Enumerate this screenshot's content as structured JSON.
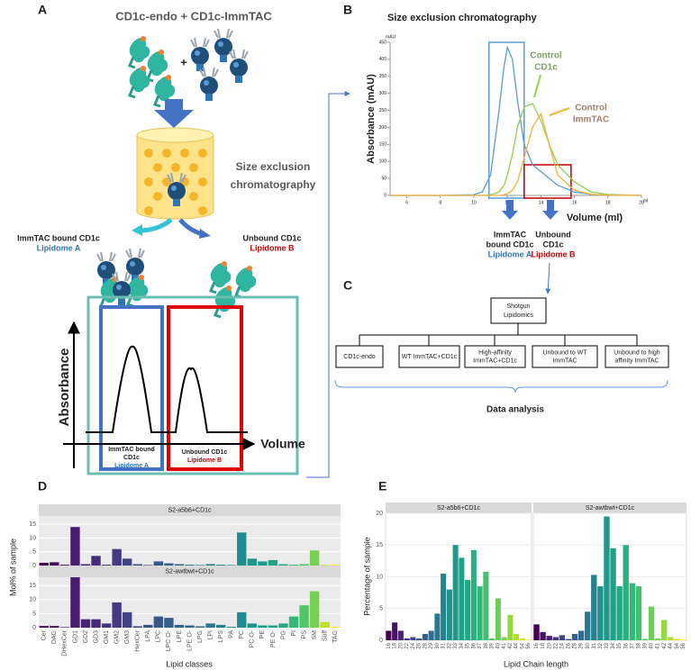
{
  "figure": {
    "A": {
      "label": "A",
      "title": "CD1c-endo + CD1c-ImmTAC",
      "plus": "+",
      "sec": [
        "Size exclusion",
        "chromatography"
      ],
      "bound": "ImmTAC bound CD1c",
      "lipidome_a": "Lipidome A",
      "unbound": "Unbound CD1c",
      "lipidome_b": "Lipidome B",
      "y_axis": "Absorbance",
      "x_axis": "Volume",
      "box_a": [
        "ImmTAC bound",
        "CD1c"
      ],
      "box_a_lipidome": "Lipidome A",
      "box_b": "Unbound CD1c",
      "box_b_lipidome": "Lipidome B"
    },
    "B": {
      "label": "B",
      "bound": [
        "ImmTAC",
        "bound CD1c"
      ],
      "lipidome_a": "Lipidome A",
      "unbound": [
        "Unbound",
        "CD1c"
      ],
      "lipidome_b": "Lipidome B"
    },
    "C": {
      "label": "C",
      "root": [
        "Shotgun",
        "Lipidomics"
      ],
      "leaves": [
        [
          "CD1c-endo"
        ],
        [
          "WT ImmTAC+CD1c"
        ],
        [
          "High-affinity",
          "ImmTAC+CD1c"
        ],
        [
          "Unbound to WT",
          "ImmTAC"
        ],
        [
          "Unbound to high",
          "affinity ImmTAC"
        ]
      ],
      "footer": "Data analysis"
    },
    "D": {
      "label": "D"
    },
    "E": {
      "label": "E"
    }
  },
  "chart_data": [
    {
      "type": "line",
      "title": "Size exclusion chromatography",
      "xlabel": "Volume (ml)",
      "ylabel": "Absorbance (mAU)",
      "x_unit": "ml",
      "y_unit": "mAU",
      "x": [
        5,
        8,
        10,
        10.5,
        11,
        11.5,
        11.8,
        12,
        12.3,
        12.6,
        13,
        13.5,
        14,
        14.5,
        15,
        16,
        17,
        18,
        20
      ],
      "series": [
        {
          "color": "#5b9bd5",
          "values": [
            0,
            0,
            2,
            10,
            60,
            250,
            380,
            435,
            400,
            280,
            150,
            90,
            70,
            50,
            30,
            10,
            3,
            1,
            0
          ]
        },
        {
          "color": "#92d050",
          "values": [
            0,
            0,
            0,
            0,
            2,
            10,
            30,
            60,
            120,
            200,
            260,
            270,
            220,
            150,
            90,
            40,
            10,
            3,
            0
          ]
        },
        {
          "color": "#f5b041",
          "values": [
            0,
            0,
            0,
            0,
            0,
            0,
            2,
            5,
            15,
            40,
            110,
            200,
            240,
            150,
            60,
            15,
            3,
            1,
            0
          ]
        }
      ],
      "annotations": [
        [
          "Control",
          "CD1c"
        ],
        [
          "Control",
          "ImmTAC"
        ]
      ],
      "regions": [
        {
          "xlim": [
            10.9,
            13
          ],
          "ylim": [
            0,
            450
          ],
          "color": "#5b9bd5"
        },
        {
          "xlim": [
            13,
            15.8
          ],
          "ylim": [
            0,
            90
          ],
          "color": "#c00000"
        }
      ],
      "xlim": [
        5,
        20
      ],
      "xticks": [
        6,
        8,
        10,
        12,
        14,
        16,
        18,
        20
      ],
      "ylim": [
        0,
        450
      ],
      "yticks": [
        0,
        50,
        100,
        150,
        200,
        250,
        300,
        350,
        400,
        450
      ]
    },
    {
      "type": "bar",
      "facets": "rows",
      "xlabel": "Lipid classes",
      "ylabel": "Mol% of sample",
      "grid": true,
      "categories": [
        "Cer",
        "DAG",
        "DHexCer",
        "GD1",
        "GD2",
        "GD3",
        "GM1",
        "GM2",
        "GM3",
        "HexCer",
        "LPA",
        "LPC",
        "LPC O-",
        "LPE",
        "LPE O-",
        "LPG",
        "LPI",
        "LPS",
        "PA",
        "PC",
        "PC O-",
        "PE",
        "PE O-",
        "PG",
        "PI",
        "PS",
        "SM",
        "Sulf",
        "TAG"
      ],
      "colors": [
        "#440154",
        "#460b5e",
        "#471466",
        "#481c6e",
        "#482475",
        "#472c7a",
        "#46337f",
        "#443a83",
        "#414287",
        "#3e4989",
        "#3b518b",
        "#38588c",
        "#355f8d",
        "#32658e",
        "#2f6b8e",
        "#2c728e",
        "#29788e",
        "#277f8e",
        "#24868e",
        "#218d8c",
        "#1f948c",
        "#1f9a8a",
        "#22a187",
        "#2aa883",
        "#35b779",
        "#52c569",
        "#75d054",
        "#c2df23",
        "#fde725"
      ],
      "series": [
        {
          "name": "S2-a5b6+CD1c",
          "values": [
            1,
            1.2,
            0.3,
            14,
            0.5,
            3.5,
            0.3,
            6,
            2.5,
            0.5,
            0.2,
            1.5,
            0.8,
            0.5,
            0.3,
            0.2,
            0.5,
            0.3,
            0.2,
            12,
            2.5,
            1.5,
            2,
            0.5,
            0.3,
            0.5,
            5.5,
            0.2,
            0.3
          ]
        },
        {
          "name": "S2-awtbwt+CD1c",
          "values": [
            0.6,
            0.6,
            0.2,
            18,
            3,
            3,
            1.5,
            9,
            5.5,
            0.5,
            1,
            4,
            3.5,
            1,
            0.8,
            0.5,
            1.5,
            1,
            0.3,
            5.5,
            1.5,
            0.8,
            0.8,
            1.5,
            4,
            8,
            13,
            2,
            0.3
          ]
        }
      ],
      "ylim": [
        0,
        18
      ],
      "yticks": [
        0,
        5,
        10,
        15
      ]
    },
    {
      "type": "bar",
      "facets": "columns",
      "xlabel": "Lipid Chain length",
      "ylabel": "Percentage of sample",
      "grid": true,
      "categories": [
        "16",
        "18",
        "20",
        "22",
        "24",
        "26",
        "28",
        "29",
        "30",
        "31",
        "32",
        "33",
        "34",
        "35",
        "36",
        "37",
        "38",
        "39",
        "40",
        "41",
        "42",
        "44",
        "54",
        "56"
      ],
      "colors": [
        "#440154",
        "#471365",
        "#482475",
        "#463480",
        "#414487",
        "#3b528b",
        "#355f8d",
        "#2f6c8e",
        "#2a788e",
        "#26828e",
        "#21918c",
        "#1f9a8a",
        "#1fa188",
        "#22a884",
        "#2ab07f",
        "#35b779",
        "#44bf70",
        "#54c568",
        "#6ccd5a",
        "#7ad151",
        "#95d840",
        "#b5de2b",
        "#d5e21a",
        "#fde725"
      ],
      "series": [
        {
          "name": "S2-a5b6+CD1c",
          "values": [
            1.5,
            2.8,
            1.5,
            0.3,
            0.5,
            0.3,
            1,
            1.5,
            4.2,
            10.5,
            8,
            15,
            13,
            9.5,
            14.2,
            8.5,
            10.8,
            0.3,
            6.6,
            0.5,
            4,
            1,
            0.3,
            0.1
          ]
        },
        {
          "name": "S2-awtbwt+CD1c",
          "values": [
            2.5,
            1.3,
            0.7,
            0.5,
            0.8,
            0.2,
            1,
            1.5,
            4.5,
            10.3,
            8.5,
            19.5,
            14.5,
            8.5,
            15,
            9,
            8.5,
            0.2,
            5.3,
            0.3,
            3.2,
            0.5,
            0.2,
            0.1
          ]
        }
      ],
      "ylim": [
        0,
        20
      ],
      "yticks": [
        0,
        5,
        10,
        15,
        20
      ]
    }
  ]
}
